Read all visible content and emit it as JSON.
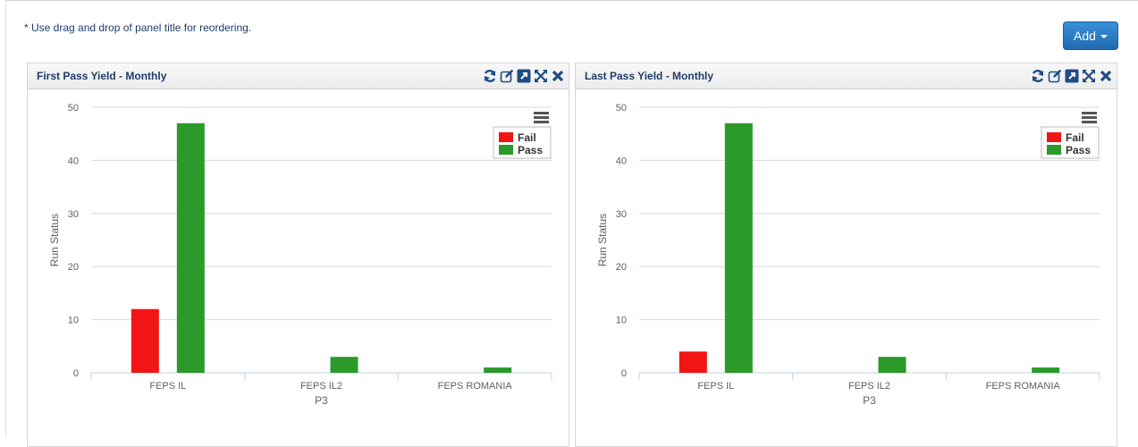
{
  "hint": "* Use drag and drop of panel title for reordering.",
  "add_button": {
    "label": "Add"
  },
  "colors": {
    "fail": "#f11515",
    "pass": "#2b9a2b",
    "title": "#1f3d6b",
    "button": "#2a7dc6"
  },
  "panels": [
    {
      "title": "First Pass Yield - Monthly",
      "icons": [
        "refresh-icon",
        "edit-icon",
        "open-external-icon",
        "fullscreen-icon",
        "close-icon"
      ],
      "chart_data": {
        "type": "bar",
        "categories": [
          "FEPS IL",
          "FEPS IL2",
          "FEPS ROMANIA"
        ],
        "series": [
          {
            "name": "Fail",
            "values": [
              12,
              0,
              0
            ]
          },
          {
            "name": "Pass",
            "values": [
              47,
              3,
              1
            ]
          }
        ],
        "xlabel": "P3",
        "ylabel": "Run Status",
        "ylim": [
          0,
          50
        ],
        "yticks": [
          0,
          10,
          20,
          30,
          40,
          50
        ],
        "grid": true,
        "legend": "top-right"
      }
    },
    {
      "title": "Last Pass Yield - Monthly",
      "icons": [
        "refresh-icon",
        "edit-icon",
        "open-external-icon",
        "fullscreen-icon",
        "close-icon"
      ],
      "chart_data": {
        "type": "bar",
        "categories": [
          "FEPS IL",
          "FEPS IL2",
          "FEPS ROMANIA"
        ],
        "series": [
          {
            "name": "Fail",
            "values": [
              4,
              0,
              0
            ]
          },
          {
            "name": "Pass",
            "values": [
              47,
              3,
              1
            ]
          }
        ],
        "xlabel": "P3",
        "ylabel": "Run Status",
        "ylim": [
          0,
          50
        ],
        "yticks": [
          0,
          10,
          20,
          30,
          40,
          50
        ],
        "grid": true,
        "legend": "top-right"
      }
    }
  ]
}
